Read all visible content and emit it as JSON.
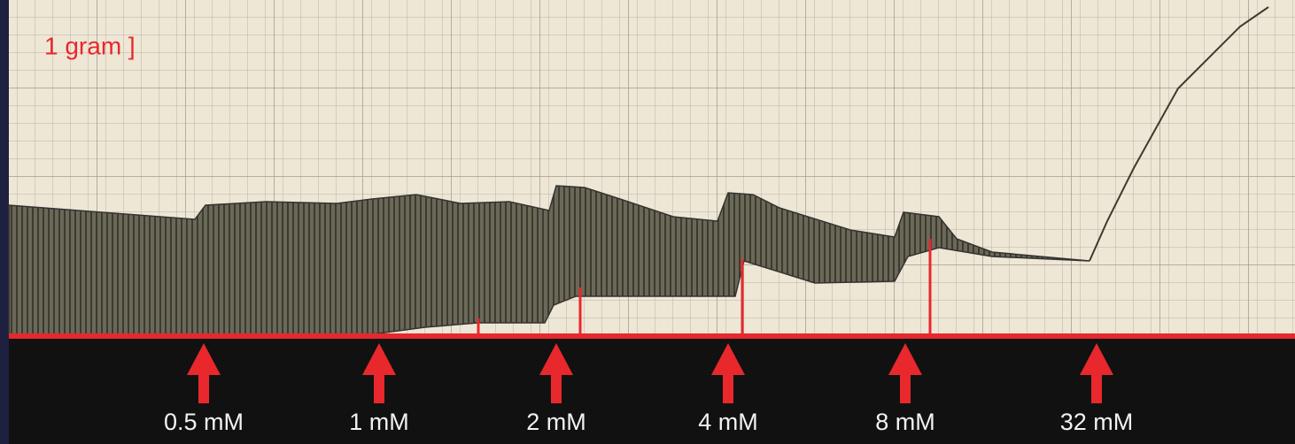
{
  "scale_label": "1 gram ]",
  "markers": [
    "0.5 mM",
    "1 mM",
    "2 mM",
    "4 mM",
    "8 mM",
    "32 mM"
  ]
}
